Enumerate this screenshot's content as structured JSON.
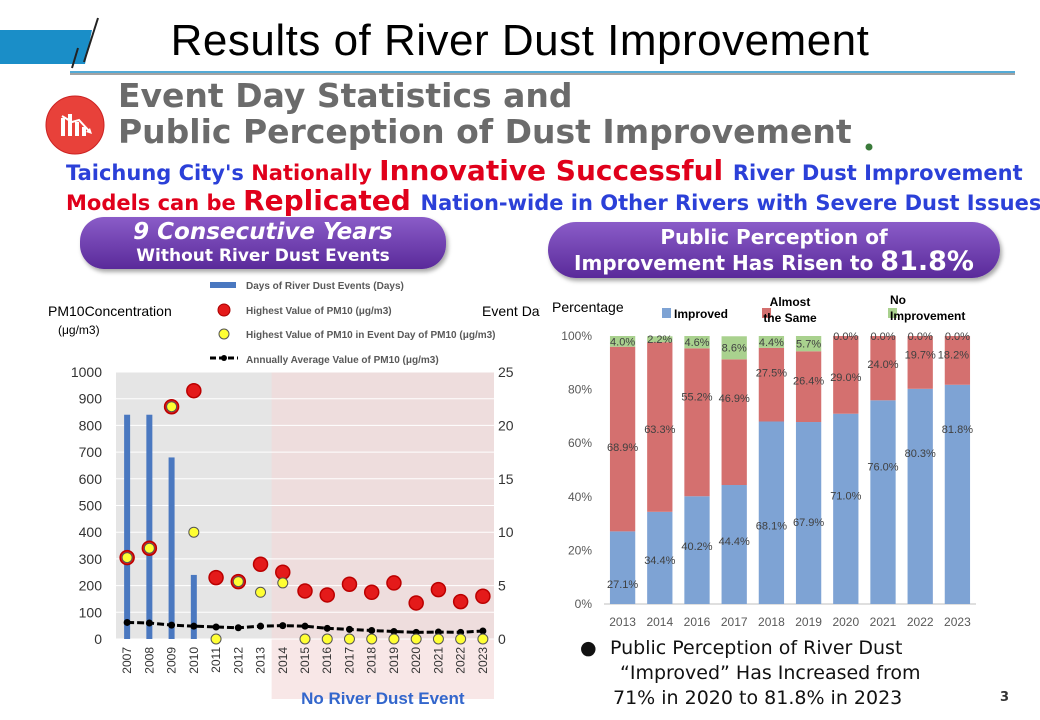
{
  "slide": {
    "title": "Results of River Dust Improvement",
    "subtitle_line1": "Event Day Statistics and",
    "subtitle_line2": "Public Perception of Dust Improvement",
    "headline1": [
      {
        "text": "Taichung City's ",
        "color": "blue",
        "big": false
      },
      {
        "text": "Nationally ",
        "color": "red",
        "big": false
      },
      {
        "text": "Innovative Successful ",
        "color": "red",
        "big": true
      },
      {
        "text": "River Dust Improvement",
        "color": "blue",
        "big": false
      }
    ],
    "headline2": [
      {
        "text": "Models can be ",
        "color": "red",
        "big": false
      },
      {
        "text": "Replicated ",
        "color": "red",
        "big": true
      },
      {
        "text": "Nation-wide in Other Rivers with Severe Dust Issues",
        "color": "blue",
        "big": false
      }
    ],
    "pill_left_line1": "9 Consecutive Years",
    "pill_left_line2": "Without River Dust Events",
    "pill_right_line1": "Public Perception of",
    "pill_right_line2": "Improvement Has Risen to ",
    "pill_right_value": "81.8%",
    "bullet_line1": "Public Perception of River Dust",
    "bullet_line2": "“Improved”  Has Increased from",
    "bullet_line3": "71% in 2020 to 81.8% in 2023",
    "page_number": "3",
    "colors": {
      "accent_blue": "#1a8ec8",
      "purple": "#6a3aa8",
      "red": "#e0001b",
      "blue_text": "#2b40d8"
    }
  },
  "chart_data": [
    {
      "type": "bar",
      "left_axis_title": "PM10Concentration",
      "left_axis_unit": "(μg/m3)",
      "right_axis_title": "Event Day",
      "left_ticks": [
        "1000",
        "900",
        "800",
        "700",
        "600",
        "500",
        "400",
        "300",
        "200",
        "100",
        "0"
      ],
      "right_ticks": [
        "25",
        "20",
        "15",
        "10",
        "5",
        "0"
      ],
      "ylim_left": [
        0,
        1000
      ],
      "ylim_right": [
        0,
        25
      ],
      "legend": [
        "Days of River Dust Events (Days)",
        "Highest Value of PM10 (μg/m3)",
        "Highest Value of PM10 in Event Day of PM10 (μg/m3)",
        "Annually Average Value of PM10 (μg/m3)"
      ],
      "categories": [
        "2007",
        "2008",
        "2009",
        "2010",
        "2011",
        "2012",
        "2013",
        "2014",
        "2015",
        "2016",
        "2017",
        "2018",
        "2019",
        "2020",
        "2021",
        "2022",
        "2023"
      ],
      "series": [
        {
          "name": "Days of River Dust Events (Days)",
          "kind": "bar",
          "axis": "right",
          "values": [
            21,
            21,
            17,
            6,
            0,
            0,
            0,
            0,
            0,
            0,
            0,
            0,
            0,
            0,
            0,
            0,
            0
          ]
        },
        {
          "name": "Highest Value of PM10 (μg/m3)",
          "kind": "marker-red",
          "axis": "left",
          "values": [
            305,
            340,
            870,
            930,
            230,
            215,
            280,
            250,
            180,
            165,
            205,
            175,
            210,
            135,
            185,
            140,
            160
          ]
        },
        {
          "name": "Highest Value of PM10 in Event Day of PM10 (μg/m3)",
          "kind": "marker-yellow",
          "axis": "left",
          "values": [
            305,
            340,
            870,
            400,
            0,
            215,
            175,
            210,
            0,
            0,
            0,
            0,
            0,
            0,
            0,
            0,
            0
          ]
        },
        {
          "name": "Annually Average Value of PM10 (μg/m3)",
          "kind": "line",
          "axis": "left",
          "values": [
            62,
            60,
            52,
            48,
            45,
            42,
            48,
            50,
            48,
            40,
            36,
            32,
            28,
            25,
            26,
            25,
            30
          ]
        }
      ],
      "annotation": "No River Dust Event"
    },
    {
      "type": "bar",
      "stacked": true,
      "ylabel": "Percentage",
      "y_ticks": [
        "100%",
        "80%",
        "60%",
        "40%",
        "20%",
        "0%"
      ],
      "ylim": [
        0,
        100
      ],
      "legend": [
        "Improved",
        "Almost the Same",
        "No Improvement"
      ],
      "categories": [
        "2013",
        "2014",
        "2016",
        "2017",
        "2018",
        "2019",
        "2020",
        "2021",
        "2022",
        "2023"
      ],
      "series": [
        {
          "name": "Improved",
          "color": "#7ea3d4",
          "values": [
            27.1,
            34.4,
            40.2,
            44.4,
            68.1,
            67.9,
            71.0,
            76.0,
            80.3,
            81.8
          ],
          "labels": [
            "27.1%",
            "34.4%",
            "40.2%",
            "44.4%",
            "68.1%",
            "67.9%",
            "71.0%",
            "76.0%",
            "80.3%",
            "81.8%"
          ]
        },
        {
          "name": "Almost the Same",
          "color": "#d4706f",
          "values": [
            68.9,
            63.3,
            55.2,
            46.9,
            27.5,
            26.4,
            29.0,
            24.0,
            19.7,
            18.2
          ],
          "labels": [
            "68.9%",
            "63.3%",
            "55.2%",
            "46.9%",
            "27.5%",
            "26.4%",
            "29.0%",
            "24.0%",
            "19.7%",
            "18.2%"
          ]
        },
        {
          "name": "No Improvement",
          "color": "#a9d18e",
          "values": [
            4.0,
            2.2,
            4.6,
            8.6,
            4.4,
            5.7,
            0.0,
            0.0,
            0.0,
            0.0
          ],
          "labels": [
            "4.0%",
            "2.2%",
            "4.6%",
            "8.6%",
            "4.4%",
            "5.7%",
            "0.0%",
            "0.0%",
            "0.0%",
            "0.0%"
          ]
        }
      ]
    }
  ]
}
